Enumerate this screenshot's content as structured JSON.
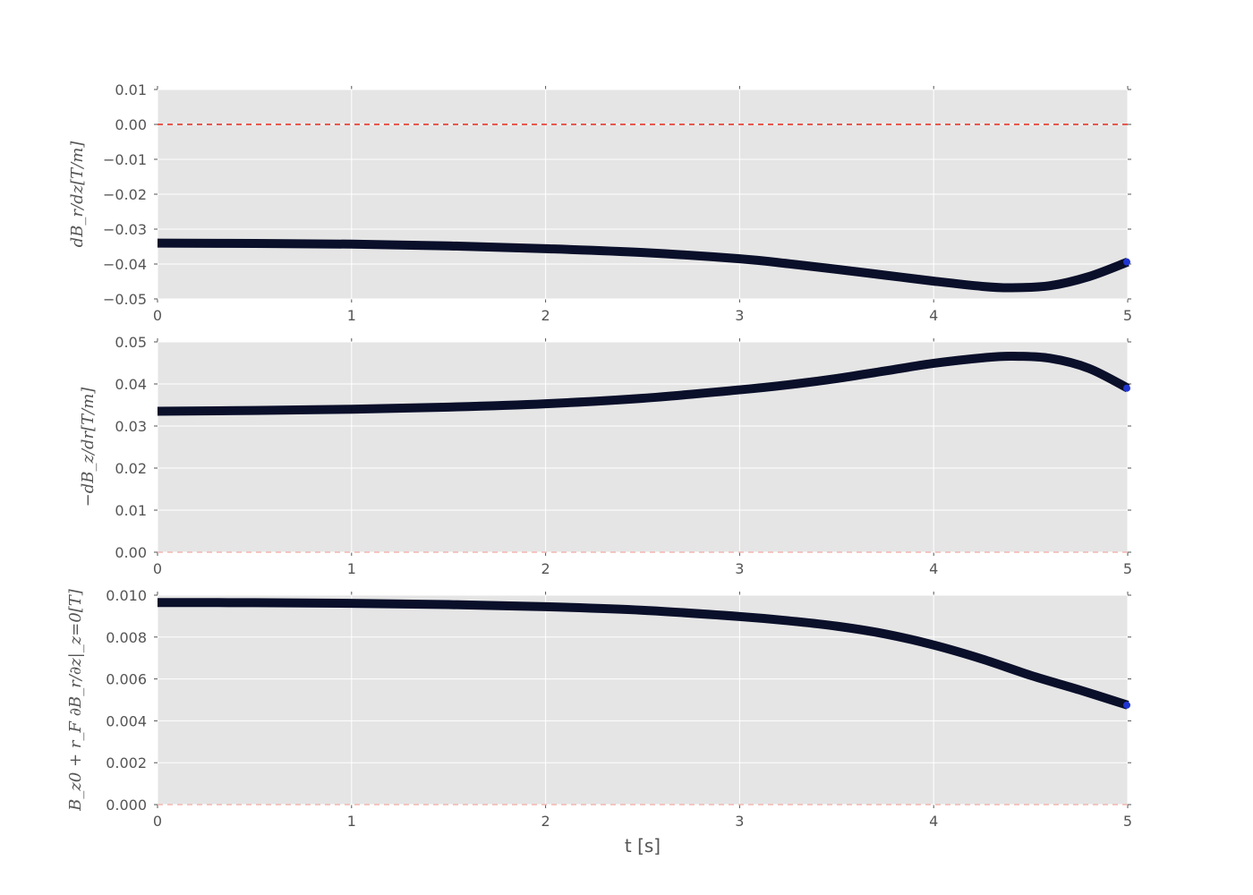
{
  "colors": {
    "panel_bg": "#e5e5e5",
    "grid": "#ffffff",
    "curve": "#0a0f2a",
    "curve_end": "#1f35d0",
    "ref_line": "#e8291c",
    "ref_line_faint": "#f3b7b2",
    "tick_text": "#555555"
  },
  "chart_data": [
    {
      "type": "line",
      "ylabel": "dB_r/dz[T/m]",
      "xlim": [
        0,
        5
      ],
      "ylim": [
        -0.05,
        0.01
      ],
      "x_ticks": [
        "0",
        "1",
        "2",
        "3",
        "4",
        "5"
      ],
      "y_ticks": [
        "0.01",
        "0.00",
        "−0.01",
        "−0.02",
        "−0.03",
        "−0.04",
        "−0.05"
      ],
      "y_tick_values": [
        0.01,
        0.0,
        -0.01,
        -0.02,
        -0.03,
        -0.04,
        -0.05
      ],
      "grid": true,
      "reference_line": {
        "y": 0.0,
        "style": "dashed",
        "color": "#e8291c"
      },
      "x": [
        0,
        0.5,
        1.0,
        1.5,
        2.0,
        2.5,
        3.0,
        3.25,
        3.5,
        3.75,
        4.0,
        4.25,
        4.4,
        4.6,
        4.8,
        5.0
      ],
      "y": [
        -0.034,
        -0.0341,
        -0.0343,
        -0.0348,
        -0.0356,
        -0.0367,
        -0.0385,
        -0.0399,
        -0.0415,
        -0.0432,
        -0.0449,
        -0.0464,
        -0.0468,
        -0.0462,
        -0.0436,
        -0.0394
      ]
    },
    {
      "type": "line",
      "ylabel": "−dB_z/dr[T/m]",
      "xlim": [
        0,
        5
      ],
      "ylim": [
        0.0,
        0.05
      ],
      "x_ticks": [
        "0",
        "1",
        "2",
        "3",
        "4",
        "5"
      ],
      "y_ticks": [
        "0.05",
        "0.04",
        "0.03",
        "0.02",
        "0.01",
        "0.00"
      ],
      "y_tick_values": [
        0.05,
        0.04,
        0.03,
        0.02,
        0.01,
        0.0
      ],
      "grid": true,
      "reference_line": {
        "y": 0.0,
        "style": "dashed",
        "color": "#f3b7b2"
      },
      "x": [
        0,
        0.5,
        1.0,
        1.5,
        2.0,
        2.5,
        3.0,
        3.25,
        3.5,
        3.75,
        4.0,
        4.25,
        4.4,
        4.6,
        4.8,
        5.0
      ],
      "y": [
        0.0335,
        0.0337,
        0.034,
        0.0345,
        0.0353,
        0.0366,
        0.0386,
        0.0398,
        0.0413,
        0.0431,
        0.0449,
        0.0462,
        0.0466,
        0.0461,
        0.0437,
        0.039
      ]
    },
    {
      "type": "line",
      "ylabel": "B_z0 + r_F ∂B_r/∂z|_z=0[T]",
      "xlim": [
        0,
        5
      ],
      "ylim": [
        0.0,
        0.01
      ],
      "x_ticks": [
        "0",
        "1",
        "2",
        "3",
        "4",
        "5"
      ],
      "y_ticks": [
        "0.010",
        "0.008",
        "0.006",
        "0.004",
        "0.002",
        "0.000"
      ],
      "y_tick_values": [
        0.01,
        0.008,
        0.006,
        0.004,
        0.002,
        0.0
      ],
      "grid": true,
      "reference_line": {
        "y": 0.0,
        "style": "dashed",
        "color": "#f3b7b2"
      },
      "xlabel": "t [s]",
      "x": [
        0,
        0.5,
        1.0,
        1.5,
        2.0,
        2.5,
        3.0,
        3.25,
        3.5,
        3.75,
        4.0,
        4.25,
        4.5,
        4.75,
        5.0
      ],
      "y": [
        0.00965,
        0.00964,
        0.00961,
        0.00955,
        0.00945,
        0.00928,
        0.00898,
        0.00878,
        0.00852,
        0.00815,
        0.00762,
        0.00695,
        0.00617,
        0.00548,
        0.00475
      ]
    }
  ]
}
